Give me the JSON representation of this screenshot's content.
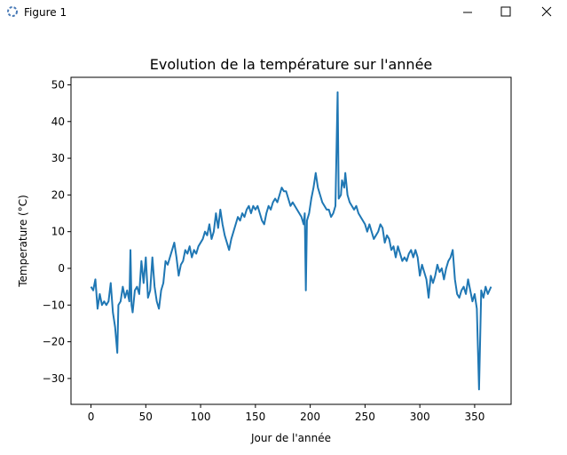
{
  "window_title": "Figure 1",
  "chart_data": {
    "type": "line",
    "title": "Evolution de la température sur l'année",
    "x_label": "Jour de l'année",
    "y_label": "Temperature (°C)",
    "x": [
      0,
      2,
      4,
      6,
      8,
      10,
      12,
      14,
      16,
      18,
      20,
      22,
      24,
      25,
      27,
      29,
      31,
      33,
      35,
      36,
      37,
      38,
      40,
      42,
      44,
      46,
      48,
      50,
      52,
      54,
      56,
      58,
      60,
      62,
      64,
      66,
      68,
      70,
      72,
      74,
      76,
      78,
      80,
      82,
      84,
      86,
      88,
      90,
      92,
      94,
      96,
      98,
      100,
      102,
      104,
      106,
      108,
      110,
      112,
      114,
      116,
      118,
      120,
      122,
      124,
      126,
      128,
      130,
      132,
      134,
      136,
      138,
      140,
      142,
      144,
      146,
      148,
      150,
      152,
      154,
      156,
      158,
      160,
      162,
      164,
      166,
      168,
      170,
      172,
      174,
      176,
      178,
      180,
      182,
      184,
      186,
      188,
      190,
      192,
      194,
      195,
      196,
      197,
      199,
      201,
      203,
      205,
      207,
      209,
      211,
      213,
      215,
      217,
      219,
      221,
      223,
      225,
      226,
      228,
      229,
      231,
      232,
      234,
      236,
      238,
      240,
      242,
      244,
      246,
      248,
      250,
      252,
      254,
      256,
      258,
      260,
      262,
      264,
      266,
      268,
      270,
      272,
      274,
      276,
      278,
      280,
      282,
      284,
      286,
      288,
      290,
      292,
      294,
      296,
      298,
      300,
      302,
      304,
      306,
      308,
      310,
      312,
      314,
      316,
      318,
      320,
      322,
      324,
      326,
      328,
      330,
      332,
      334,
      336,
      338,
      340,
      342,
      344,
      346,
      348,
      350,
      352,
      354,
      356,
      358,
      360,
      362,
      365
    ],
    "series": [
      {
        "color": "#1f77b4",
        "values": [
          -5,
          -6,
          -3,
          -11,
          -7,
          -10,
          -9,
          -10,
          -9,
          -4,
          -12,
          -16,
          -23,
          -10,
          -9,
          -5,
          -8,
          -6,
          -9,
          5,
          -10,
          -12,
          -6,
          -5,
          -7,
          2,
          -4,
          3,
          -8,
          -6,
          3,
          -5,
          -9,
          -11,
          -6,
          -4,
          2,
          1,
          3,
          5,
          7,
          3,
          -2,
          1,
          2,
          5,
          4,
          6,
          3,
          5,
          4,
          6,
          7,
          8,
          10,
          9,
          12,
          8,
          10,
          15,
          11,
          16,
          12,
          9,
          7,
          5,
          8,
          10,
          12,
          14,
          13,
          15,
          14,
          16,
          17,
          15,
          17,
          16,
          17,
          15,
          13,
          12,
          15,
          17,
          16,
          18,
          19,
          18,
          20,
          22,
          21,
          21,
          19,
          17,
          18,
          17,
          16,
          15,
          14,
          12,
          15,
          -6,
          13,
          15,
          19,
          22,
          26,
          22,
          20,
          18,
          17,
          16,
          16,
          14,
          15,
          17,
          48,
          19,
          20,
          24,
          22,
          26,
          20,
          18,
          17,
          16,
          17,
          15,
          14,
          13,
          12,
          10,
          12,
          10,
          8,
          9,
          10,
          12,
          11,
          7,
          9,
          8,
          5,
          6,
          3,
          6,
          4,
          2,
          3,
          2,
          4,
          5,
          3,
          5,
          3,
          -2,
          1,
          -1,
          -3,
          -8,
          -2,
          -4,
          -2,
          1,
          -1,
          0,
          -3,
          0,
          2,
          3,
          5,
          -3,
          -7,
          -8,
          -6,
          -5,
          -7,
          -3,
          -6,
          -9,
          -7,
          -11,
          -33,
          -6,
          -8,
          -5,
          -7,
          -5
        ]
      }
    ],
    "xlim": [
      -18.25,
      383.25
    ],
    "ylim": [
      -37.05,
      52.05
    ],
    "xticks": [
      0,
      50,
      100,
      150,
      200,
      250,
      300,
      350
    ],
    "yticks": [
      {
        "value": -30,
        "label": "−30"
      },
      {
        "value": -20,
        "label": "−20"
      },
      {
        "value": -10,
        "label": "−10"
      },
      0,
      10,
      20,
      30,
      40,
      50
    ]
  }
}
